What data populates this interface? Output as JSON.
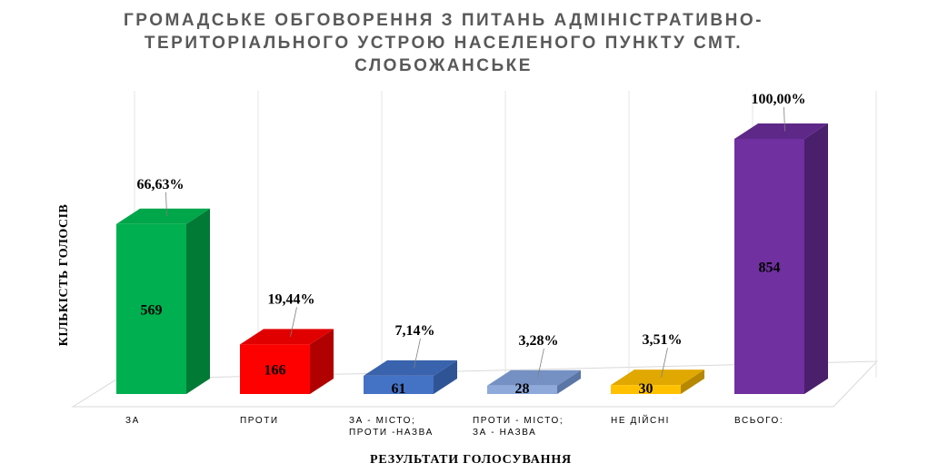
{
  "chart_data": {
    "type": "bar",
    "title_lines": [
      "ГРОМАДСЬКЕ ОБГОВОРЕННЯ З ПИТАНЬ АДМІНІСТРАТИВНО-",
      "ТЕРИТОРІАЛЬНОГО УСТРОЮ НАСЕЛЕНОГО ПУНКТУ СМТ.",
      "СЛОБОЖАНСЬКЕ"
    ],
    "ylabel": "КІЛЬКІСТЬ ГОЛОСІВ",
    "xlabel": "РЕЗУЛЬТАТИ ГОЛОСУВАННЯ",
    "categories": [
      [
        "ЗА"
      ],
      [
        "ПРОТИ"
      ],
      [
        "ЗА - МІСТО;",
        "ПРОТИ -НАЗВА"
      ],
      [
        "ПРОТИ - МІСТО;",
        "ЗА - НАЗВА"
      ],
      [
        "НЕ ДІЙСНІ"
      ],
      [
        "ВСЬОГО:"
      ]
    ],
    "values": [
      569,
      166,
      61,
      28,
      30,
      854
    ],
    "value_labels": [
      "569",
      "166",
      "61",
      "28",
      "30",
      "854"
    ],
    "percent_labels": [
      "66,63%",
      "19,44%",
      "7,14%",
      "3,28%",
      "3,51%",
      "100,00%"
    ],
    "colors": [
      {
        "front": "#00b050",
        "side": "#007a35",
        "top": "#00a64a"
      },
      {
        "front": "#ff0000",
        "side": "#b00000",
        "top": "#e00000"
      },
      {
        "front": "#4472c4",
        "side": "#2f5496",
        "top": "#3a63ad"
      },
      {
        "front": "#8eaadb",
        "side": "#5a76a6",
        "top": "#7591c4"
      },
      {
        "front": "#ffc000",
        "side": "#b58800",
        "top": "#e0a800"
      },
      {
        "front": "#7030a0",
        "side": "#4a1f6b",
        "top": "#5e2888"
      }
    ],
    "ylim": [
      0,
      950
    ],
    "grid": false,
    "legend": "none"
  }
}
